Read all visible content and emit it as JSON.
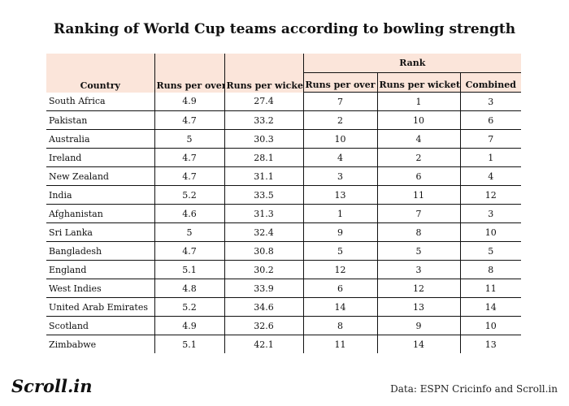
{
  "chart_data": {
    "type": "table",
    "title": "Ranking of World Cup teams according to bowling strength",
    "group_header": "Rank",
    "columns": [
      "Country",
      "Runs per over",
      "Runs per wicket",
      "Runs per over",
      "Runs per wicket",
      "Combined"
    ],
    "rows": [
      [
        "South Africa",
        "4.9",
        "27.4",
        "7",
        "1",
        "3"
      ],
      [
        "Pakistan",
        "4.7",
        "33.2",
        "2",
        "10",
        "6"
      ],
      [
        "Australia",
        "5",
        "30.3",
        "10",
        "4",
        "7"
      ],
      [
        "Ireland",
        "4.7",
        "28.1",
        "4",
        "2",
        "1"
      ],
      [
        "New Zealand",
        "4.7",
        "31.1",
        "3",
        "6",
        "4"
      ],
      [
        "India",
        "5.2",
        "33.5",
        "13",
        "11",
        "12"
      ],
      [
        "Afghanistan",
        "4.6",
        "31.3",
        "1",
        "7",
        "3"
      ],
      [
        "Sri Lanka",
        "5",
        "32.4",
        "9",
        "8",
        "10"
      ],
      [
        "Bangladesh",
        "4.7",
        "30.8",
        "5",
        "5",
        "5"
      ],
      [
        "England",
        "5.1",
        "30.2",
        "12",
        "3",
        "8"
      ],
      [
        "West Indies",
        "4.8",
        "33.9",
        "6",
        "12",
        "11"
      ],
      [
        "United Arab Emirates",
        "5.2",
        "34.6",
        "14",
        "13",
        "14"
      ],
      [
        "Scotland",
        "4.9",
        "32.6",
        "8",
        "9",
        "10"
      ],
      [
        "Zimbabwe",
        "5.1",
        "42.1",
        "11",
        "14",
        "13"
      ]
    ]
  },
  "footer": {
    "logo": "Scroll.in",
    "source": "Data: ESPN Cricinfo and Scroll.in"
  },
  "colors": {
    "header_background": "#fbe5da",
    "rule": "#111111"
  }
}
